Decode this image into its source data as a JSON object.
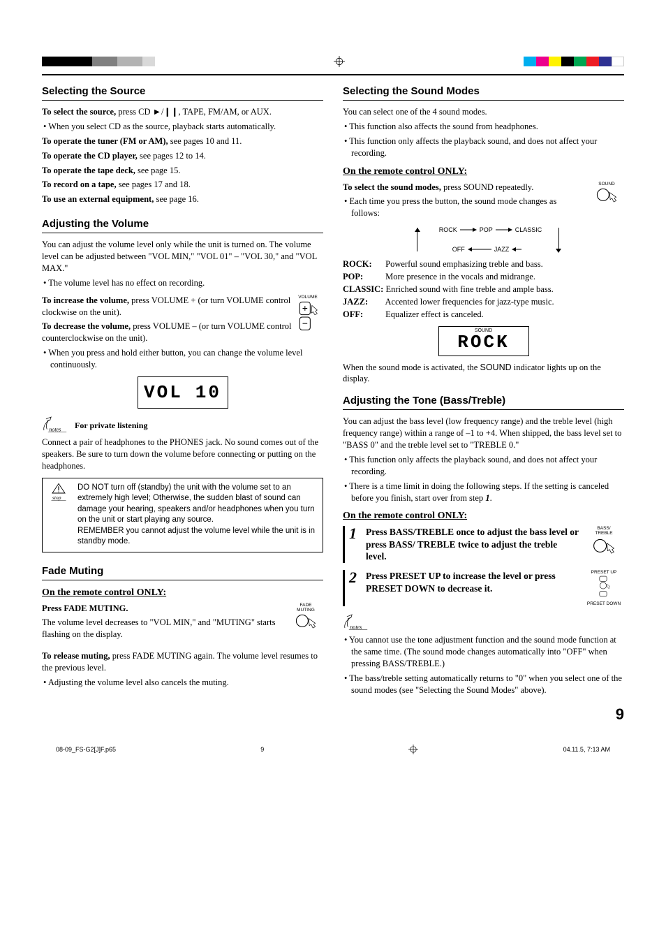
{
  "registration": {
    "left_swatches": [
      "#000000",
      "#000000",
      "#000000",
      "#000000",
      "#808080",
      "#808080",
      "#b3b3b3",
      "#b3b3b3",
      "#d9d9d9"
    ],
    "right_swatches": [
      "#00aeef",
      "#ec008c",
      "#fff200",
      "#000000",
      "#00a651",
      "#ed1c24",
      "#2e3192",
      "#ffffff"
    ]
  },
  "left": {
    "sec1_title": "Selecting the Source",
    "sec1_p1a": "To select the source,",
    "sec1_p1b": " press CD ►/❙❙, TAPE, FM/AM, or AUX.",
    "sec1_b1": "When you select CD as the source, playback starts automatically.",
    "sec1_l1a": "To operate the tuner (FM or AM),",
    "sec1_l1b": " see pages 10 and 11.",
    "sec1_l2a": "To operate the CD player,",
    "sec1_l2b": " see pages 12 to 14.",
    "sec1_l3a": "To operate the tape deck,",
    "sec1_l3b": " see page 15.",
    "sec1_l4a": "To record on a tape,",
    "sec1_l4b": " see pages 17 and 18.",
    "sec1_l5a": "To use an external equipment,",
    "sec1_l5b": " see page 16.",
    "sec2_title": "Adjusting the Volume",
    "sec2_p1": "You can adjust the volume level only while the unit is turned on. The volume level can be adjusted between \"VOL MIN,\" \"VOL 01\" – \"VOL 30,\" and \"VOL MAX.\"",
    "sec2_b1": "The volume level has no effect on recording.",
    "sec2_inc_a": "To increase the volume,",
    "sec2_inc_b": " press VOLUME + (or turn VOLUME control clockwise on the unit).",
    "sec2_dec_a": "To decrease the volume,",
    "sec2_dec_b": " press VOLUME – (or turn VOLUME control counterclockwise on the unit).",
    "sec2_b2": "When you press and hold either button, you can change the volume level continuously.",
    "vol_label": "VOLUME",
    "vol_display_a": "VOL",
    "vol_display_b": "10",
    "notes_hdr": "For private listening",
    "notes_body": "Connect a pair of headphones to the PHONES jack. No sound comes out of the speakers. Be sure to turn down the volume before connecting or putting on the headphones.",
    "stop_p1": "DO NOT turn off (standby) the unit with the volume set to an extremely high level; Otherwise, the sudden blast of sound can damage your hearing, speakers and/or headphones when you turn on the unit or start playing any source.",
    "stop_p2": "REMEMBER you cannot adjust the volume level while the unit is in standby mode.",
    "sec3_title": "Fade Muting",
    "sec3_sub": "On the remote control ONLY:",
    "sec3_p1": "Press FADE MUTING.",
    "sec3_p2": "The volume level decreases to \"VOL MIN,\" and \"MUTING\" starts flashing on the display.",
    "sec3_p3a": "To release muting,",
    "sec3_p3b": " press FADE MUTING again. The volume level resumes to the previous level.",
    "sec3_b1": "Adjusting the volume level also cancels the muting.",
    "fade_label": "FADE\nMUTING"
  },
  "right": {
    "sec1_title": "Selecting the Sound Modes",
    "sec1_p1": "You can select one of the 4 sound modes.",
    "sec1_b1": "This function also affects the sound from headphones.",
    "sec1_b2": "This function only affects the playback sound, and does not affect your recording.",
    "sec1_sub": "On the remote control ONLY:",
    "sec1_p2a": "To select the sound modes,",
    "sec1_p2b": " press SOUND repeatedly.",
    "sec1_b3": "Each time you press the button, the sound mode changes as follows:",
    "sound_label": "SOUND",
    "cycle": [
      "ROCK",
      "POP",
      "CLASSIC",
      "OFF",
      "JAZZ"
    ],
    "modes": {
      "ROCK": "Powerful sound emphasizing treble and bass.",
      "POP": "More presence in the vocals and midrange.",
      "CLASSIC": "Enriched sound with fine treble and ample bass.",
      "JAZZ": "Accented lower frequencies for jazz-type music.",
      "OFF": "Equalizer effect is canceled."
    },
    "rock_tiny": "SOUND",
    "rock_seg": "ROCK",
    "sec1_p3a": "When the sound mode is activated, the ",
    "sec1_p3b": "SOUND",
    "sec1_p3c": " indicator lights up on the display.",
    "sec2_title": "Adjusting the Tone (Bass/Treble)",
    "sec2_p1": "You can adjust the bass level (low frequency range) and the treble level (high frequency range) within a range of –1 to +4. When shipped, the bass level set to \"BASS 0\" and the treble level set to \"TREBLE 0.\"",
    "sec2_b1": "This function only affects the playback sound, and does not affect your recording.",
    "sec2_b2a": "There is a time limit in doing the following steps. If the setting is canceled before you finish, start over from step ",
    "sec2_b2b": "1",
    "sec2_b2c": ".",
    "sec2_sub": "On the remote control ONLY:",
    "step1_num": "1",
    "step1_text": "Press BASS/TREBLE once to adjust the bass level or press BASS/ TREBLE twice to adjust the treble level.",
    "step1_label": "BASS/\nTREBLE",
    "step2_num": "2",
    "step2_text": "Press PRESET UP to increase the level or press PRESET DOWN to decrease it.",
    "step2_label_up": "PRESET UP",
    "step2_label_dn": "PRESET DOWN",
    "notes_b1": "You cannot use the tone adjustment function and the sound mode function at the same time. (The sound mode changes automatically into \"OFF\" when pressing BASS/TREBLE.)",
    "notes_b2": "The bass/treble setting automatically returns to \"0\" when you select one of the sound modes (see \"Selecting the Sound Modes\" above)."
  },
  "page_number": "9",
  "footer": {
    "file": "08-09_FS-G2[J]F.p65",
    "page": "9",
    "date": "04.11.5, 7:13 AM"
  }
}
